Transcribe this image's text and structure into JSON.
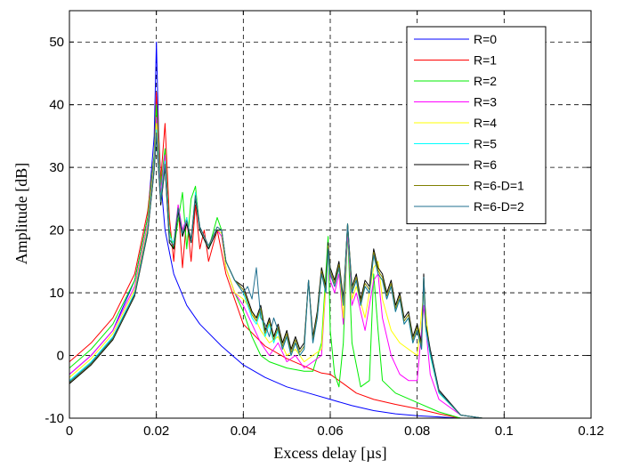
{
  "chart_data": {
    "type": "line",
    "title": "",
    "xlabel": "Excess delay [µs]",
    "ylabel": "Amplitude [dB]",
    "xlim": [
      0,
      0.12
    ],
    "ylim": [
      -10,
      55
    ],
    "xticks": [
      0,
      0.02,
      0.04,
      0.06,
      0.08,
      0.1,
      0.12
    ],
    "xtick_labels": [
      "0",
      "0.02",
      "0.04",
      "0.06",
      "0.08",
      "0.1",
      "0.12"
    ],
    "yticks": [
      -10,
      0,
      10,
      20,
      30,
      40,
      50
    ],
    "ytick_labels": [
      "-10",
      "0",
      "10",
      "20",
      "30",
      "40",
      "50"
    ],
    "grid": true,
    "legend_position": "top-right",
    "series": [
      {
        "name": "R=0",
        "color": "#0000ff",
        "x": [
          0,
          0.005,
          0.01,
          0.015,
          0.018,
          0.0195,
          0.02,
          0.0205,
          0.021,
          0.022,
          0.024,
          0.027,
          0.03,
          0.035,
          0.04,
          0.045,
          0.05,
          0.055,
          0.06,
          0.065,
          0.07,
          0.075,
          0.08,
          0.085,
          0.09,
          0.095
        ],
        "y": [
          -3,
          0,
          4,
          12,
          22,
          35,
          50,
          36,
          28,
          20,
          13,
          8,
          5,
          1.5,
          -1.5,
          -3.5,
          -5,
          -6,
          -7,
          -8,
          -8.8,
          -9.3,
          -9.6,
          -9.8,
          -10,
          -10
        ]
      },
      {
        "name": "R=1",
        "color": "#ff0000",
        "x": [
          0,
          0.005,
          0.01,
          0.015,
          0.018,
          0.0195,
          0.02,
          0.021,
          0.022,
          0.023,
          0.024,
          0.025,
          0.026,
          0.027,
          0.028,
          0.029,
          0.03,
          0.031,
          0.032,
          0.034,
          0.036,
          0.04,
          0.045,
          0.05,
          0.055,
          0.058,
          0.06,
          0.063,
          0.066,
          0.07,
          0.075,
          0.08,
          0.085,
          0.09,
          0.095
        ],
        "y": [
          -1,
          2,
          6,
          13,
          23,
          32,
          42,
          28,
          37,
          22,
          15,
          24,
          14,
          22,
          15,
          24,
          17,
          20,
          15,
          20,
          13,
          5,
          1.5,
          -0.5,
          -2,
          -2.8,
          -3,
          -4.5,
          -6,
          -7,
          -7.8,
          -8.5,
          -9.3,
          -10,
          -10
        ]
      },
      {
        "name": "R=2",
        "color": "#00ee00",
        "x": [
          0,
          0.005,
          0.01,
          0.015,
          0.018,
          0.0195,
          0.02,
          0.021,
          0.022,
          0.023,
          0.024,
          0.026,
          0.027,
          0.028,
          0.029,
          0.03,
          0.032,
          0.034,
          0.035,
          0.036,
          0.038,
          0.04,
          0.042,
          0.044,
          0.046,
          0.05,
          0.054,
          0.056,
          0.058,
          0.0595,
          0.06,
          0.061,
          0.062,
          0.063,
          0.064,
          0.065,
          0.067,
          0.069,
          0.07,
          0.071,
          0.072,
          0.075,
          0.08,
          0.085,
          0.09,
          0.095
        ],
        "y": [
          -2,
          1,
          5,
          12,
          22,
          32,
          40,
          27,
          33,
          20,
          17,
          26,
          17,
          25,
          27,
          20,
          17,
          22,
          20,
          14,
          10,
          7,
          3,
          0,
          -1,
          -2,
          -2.5,
          -2.5,
          2,
          19,
          4,
          -3,
          -5,
          2,
          20,
          2,
          -5,
          -4,
          13,
          4,
          -4,
          -6,
          -7.5,
          -9,
          -10,
          -10
        ]
      },
      {
        "name": "R=3",
        "color": "#ff00ff",
        "x": [
          0,
          0.005,
          0.01,
          0.015,
          0.018,
          0.0195,
          0.02,
          0.021,
          0.022,
          0.023,
          0.024,
          0.025,
          0.026,
          0.027,
          0.028,
          0.029,
          0.03,
          0.032,
          0.034,
          0.035,
          0.036,
          0.038,
          0.04,
          0.042,
          0.044,
          0.046,
          0.048,
          0.05,
          0.052,
          0.054,
          0.056,
          0.058,
          0.0595,
          0.06,
          0.061,
          0.062,
          0.063,
          0.064,
          0.065,
          0.066,
          0.068,
          0.07,
          0.071,
          0.072,
          0.074,
          0.076,
          0.078,
          0.08,
          0.0815,
          0.083,
          0.085,
          0.09,
          0.095
        ],
        "y": [
          -3,
          0,
          4,
          11,
          21,
          31,
          38,
          26,
          32,
          19,
          18,
          24,
          20,
          22,
          18,
          26,
          20,
          17,
          20,
          19,
          14,
          10,
          8,
          5,
          2,
          0,
          2,
          -1,
          0,
          -2,
          -1,
          0,
          17,
          12,
          10,
          13,
          5,
          20,
          8,
          10,
          4,
          12,
          13,
          6,
          0,
          -3,
          -4,
          -4,
          8,
          -3,
          -7,
          -9.5,
          -10
        ]
      },
      {
        "name": "R=4",
        "color": "#ffff00",
        "x": [
          0,
          0.005,
          0.01,
          0.015,
          0.018,
          0.0195,
          0.02,
          0.021,
          0.022,
          0.023,
          0.024,
          0.025,
          0.026,
          0.027,
          0.028,
          0.029,
          0.03,
          0.032,
          0.034,
          0.035,
          0.036,
          0.038,
          0.04,
          0.042,
          0.044,
          0.046,
          0.048,
          0.05,
          0.052,
          0.054,
          0.056,
          0.058,
          0.0595,
          0.06,
          0.061,
          0.062,
          0.063,
          0.064,
          0.065,
          0.066,
          0.068,
          0.07,
          0.071,
          0.072,
          0.074,
          0.076,
          0.078,
          0.08,
          0.0815,
          0.083,
          0.085,
          0.09,
          0.095
        ],
        "y": [
          -3.5,
          -0.5,
          3.5,
          10.5,
          20.5,
          30.5,
          37,
          25,
          31,
          19,
          18,
          23,
          19,
          22,
          18,
          26,
          20,
          17,
          20,
          19.5,
          14,
          10,
          9,
          7,
          4,
          2,
          3,
          0,
          1,
          -1,
          0,
          1,
          17,
          13,
          11,
          14,
          6,
          21,
          9,
          11,
          6,
          14,
          15,
          9,
          4,
          2,
          1,
          0,
          10,
          0,
          -6,
          -9.5,
          -10
        ]
      },
      {
        "name": "R=5",
        "color": "#00ffff",
        "x": [
          0,
          0.005,
          0.01,
          0.015,
          0.018,
          0.0195,
          0.02,
          0.021,
          0.022,
          0.023,
          0.024,
          0.025,
          0.026,
          0.027,
          0.028,
          0.029,
          0.03,
          0.032,
          0.034,
          0.035,
          0.036,
          0.038,
          0.04,
          0.041,
          0.042,
          0.043,
          0.044,
          0.045,
          0.046,
          0.047,
          0.048,
          0.049,
          0.05,
          0.051,
          0.052,
          0.053,
          0.054,
          0.055,
          0.056,
          0.057,
          0.058,
          0.059,
          0.0595,
          0.06,
          0.061,
          0.062,
          0.063,
          0.064,
          0.065,
          0.066,
          0.067,
          0.068,
          0.069,
          0.07,
          0.071,
          0.072,
          0.073,
          0.074,
          0.075,
          0.076,
          0.077,
          0.078,
          0.079,
          0.08,
          0.081,
          0.0815,
          0.082,
          0.083,
          0.085,
          0.09,
          0.095
        ],
        "y": [
          -4,
          -1,
          3,
          10,
          20,
          30,
          36,
          25,
          31,
          19,
          18,
          23,
          19,
          22,
          18,
          26,
          20,
          17,
          20,
          20,
          15,
          12,
          10,
          8,
          6,
          5,
          7,
          3,
          5,
          2,
          4,
          1,
          3,
          0,
          2,
          0,
          1,
          12,
          2,
          6,
          13,
          10,
          17,
          13,
          11,
          14,
          8,
          21,
          10,
          12,
          8,
          11,
          10,
          16,
          13,
          12,
          9,
          11,
          7,
          9,
          5,
          6,
          2,
          4,
          1,
          12,
          4,
          0,
          -6,
          -9.5,
          -10
        ]
      },
      {
        "name": "R=6",
        "color": "#000000",
        "x": [
          0,
          0.005,
          0.01,
          0.015,
          0.018,
          0.0195,
          0.02,
          0.021,
          0.022,
          0.023,
          0.024,
          0.025,
          0.026,
          0.027,
          0.028,
          0.029,
          0.03,
          0.032,
          0.034,
          0.035,
          0.036,
          0.038,
          0.04,
          0.041,
          0.042,
          0.043,
          0.044,
          0.045,
          0.046,
          0.047,
          0.048,
          0.049,
          0.05,
          0.051,
          0.052,
          0.053,
          0.054,
          0.055,
          0.056,
          0.057,
          0.058,
          0.059,
          0.0595,
          0.06,
          0.061,
          0.062,
          0.063,
          0.064,
          0.065,
          0.066,
          0.067,
          0.068,
          0.069,
          0.07,
          0.071,
          0.072,
          0.073,
          0.074,
          0.075,
          0.076,
          0.077,
          0.078,
          0.079,
          0.08,
          0.081,
          0.0815,
          0.082,
          0.083,
          0.085,
          0.09,
          0.095
        ],
        "y": [
          -4.5,
          -1.5,
          2.5,
          9.5,
          19.5,
          29.5,
          35,
          24,
          30,
          18,
          17,
          23,
          19,
          21,
          18,
          25,
          20,
          17,
          20,
          20,
          15,
          12,
          11,
          9,
          7,
          6,
          8,
          4,
          6,
          3,
          5,
          2,
          4,
          1,
          3,
          1,
          2,
          12,
          3,
          7,
          14,
          11,
          18,
          14,
          12,
          15,
          9,
          21,
          11,
          13,
          9,
          12,
          11,
          17,
          14,
          13,
          10,
          12,
          8,
          10,
          6,
          7,
          3,
          5,
          2,
          13,
          5,
          1,
          -5.5,
          -9.5,
          -10
        ]
      },
      {
        "name": "R=6-D=1",
        "color": "#808000",
        "x": [
          0,
          0.005,
          0.01,
          0.015,
          0.018,
          0.0195,
          0.02,
          0.021,
          0.022,
          0.023,
          0.024,
          0.025,
          0.026,
          0.027,
          0.028,
          0.029,
          0.03,
          0.032,
          0.034,
          0.035,
          0.036,
          0.038,
          0.04,
          0.041,
          0.042,
          0.043,
          0.044,
          0.045,
          0.046,
          0.047,
          0.048,
          0.049,
          0.05,
          0.051,
          0.052,
          0.053,
          0.054,
          0.055,
          0.056,
          0.057,
          0.058,
          0.059,
          0.0595,
          0.06,
          0.061,
          0.062,
          0.063,
          0.064,
          0.065,
          0.066,
          0.067,
          0.068,
          0.069,
          0.07,
          0.071,
          0.072,
          0.073,
          0.074,
          0.075,
          0.076,
          0.077,
          0.078,
          0.079,
          0.08,
          0.081,
          0.0815,
          0.082,
          0.083,
          0.085,
          0.09,
          0.095
        ],
        "y": [
          -4.3,
          -1.3,
          2.7,
          9.7,
          19.7,
          29.7,
          35.5,
          24.5,
          30.5,
          18.5,
          17.5,
          23.5,
          19.5,
          21.5,
          18.5,
          25.5,
          20.5,
          17.5,
          20.5,
          20,
          15,
          12,
          10.5,
          8.5,
          6.5,
          5.5,
          7.5,
          3.5,
          5.5,
          2.5,
          4.5,
          1.5,
          3.5,
          0.5,
          2.5,
          0.5,
          1.5,
          12,
          2.5,
          6.5,
          13.5,
          10.5,
          17.5,
          13.5,
          11.5,
          14.5,
          8.5,
          21,
          10.5,
          12.5,
          8.5,
          11.5,
          10.5,
          16.5,
          13.5,
          12.5,
          9.5,
          11.5,
          7.5,
          9.5,
          5.5,
          6.5,
          2.5,
          4.5,
          1.5,
          12.5,
          4.5,
          0.5,
          -5.8,
          -9.5,
          -10
        ]
      },
      {
        "name": "R=6-D=2",
        "color": "#1f6f8f",
        "x": [
          0,
          0.005,
          0.01,
          0.015,
          0.018,
          0.0195,
          0.02,
          0.021,
          0.022,
          0.023,
          0.024,
          0.025,
          0.026,
          0.027,
          0.028,
          0.029,
          0.03,
          0.032,
          0.034,
          0.035,
          0.036,
          0.038,
          0.04,
          0.041,
          0.042,
          0.043,
          0.044,
          0.045,
          0.046,
          0.047,
          0.048,
          0.049,
          0.05,
          0.051,
          0.052,
          0.053,
          0.054,
          0.055,
          0.056,
          0.057,
          0.058,
          0.059,
          0.0595,
          0.06,
          0.061,
          0.062,
          0.063,
          0.064,
          0.065,
          0.066,
          0.067,
          0.068,
          0.069,
          0.07,
          0.071,
          0.072,
          0.073,
          0.074,
          0.075,
          0.076,
          0.077,
          0.078,
          0.079,
          0.08,
          0.081,
          0.0815,
          0.082,
          0.083,
          0.085,
          0.09,
          0.095
        ],
        "y": [
          -4.2,
          -1.2,
          2.8,
          9.8,
          19.8,
          29.8,
          35.5,
          24.5,
          30.5,
          18.5,
          17.5,
          23.5,
          19.5,
          21.5,
          18.5,
          25.5,
          20.5,
          17.5,
          20.5,
          20,
          15,
          12,
          10,
          11,
          9,
          14,
          6,
          5,
          3,
          6,
          4,
          1,
          3,
          0,
          2,
          0,
          1,
          12,
          2,
          6,
          13,
          10,
          17,
          13,
          11,
          14,
          8,
          21,
          10,
          12,
          8,
          11,
          10,
          16,
          13,
          12,
          9,
          11,
          7,
          9,
          5,
          6,
          2,
          4,
          1,
          12.5,
          4.5,
          0.5,
          -5.8,
          -9.5,
          -10
        ]
      }
    ]
  }
}
